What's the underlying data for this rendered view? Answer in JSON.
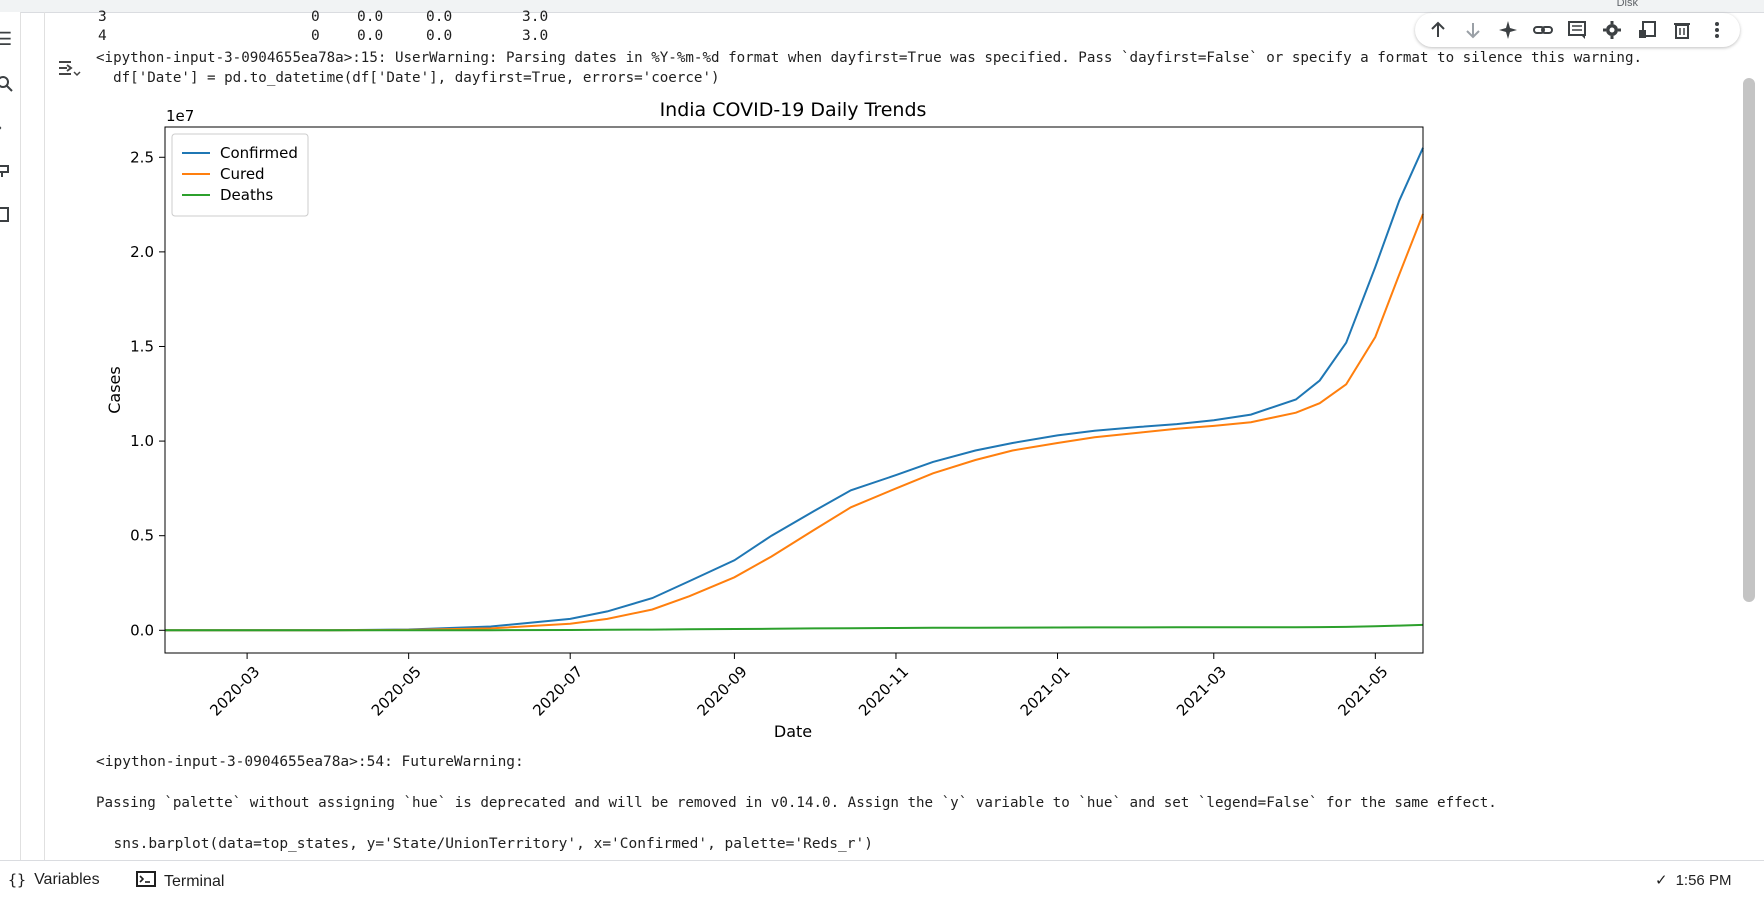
{
  "topbar": {
    "disk_label": "Disk"
  },
  "table_rows": [
    {
      "index": "3",
      "c1": "0",
      "c2": "0.0",
      "c3": "0.0",
      "c4": "3.0"
    },
    {
      "index": "4",
      "c1": "0",
      "c2": "0.0",
      "c3": "0.0",
      "c4": "3.0"
    }
  ],
  "warning1": {
    "line1": "<ipython-input-3-0904655ea78a>:15: UserWarning: Parsing dates in %Y-%m-%d format when dayfirst=True was specified. Pass `dayfirst=False` or specify a format to silence this warning.",
    "line2": "  df['Date'] = pd.to_datetime(df['Date'], dayfirst=True, errors='coerce')"
  },
  "warning2": {
    "line1": "<ipython-input-3-0904655ea78a>:54: FutureWarning:",
    "line2": "Passing `palette` without assigning `hue` is deprecated and will be removed in v0.14.0. Assign the `y` variable to `hue` and set `legend=False` for the same effect.",
    "line3": "  sns.barplot(data=top_states, y='State/UnionTerritory', x='Confirmed', palette='Reds_r')"
  },
  "bottombar": {
    "variables_label": "Variables",
    "terminal_label": "Terminal",
    "time": "1:56 PM"
  },
  "icons": {
    "toolbar": [
      "arrow-up-icon",
      "arrow-down-icon",
      "sparkle-icon",
      "link-icon",
      "comment-icon",
      "gear-icon",
      "mirror-cell-icon",
      "trash-icon",
      "more-vert-icon"
    ]
  },
  "chart_data": {
    "type": "line",
    "title": "India COVID-19 Daily Trends",
    "xlabel": "Date",
    "ylabel": "Cases",
    "y_multiplier_label": "1e7",
    "xlim": [
      "2020-01-30",
      "2021-05-19"
    ],
    "ylim": [
      -0.12,
      2.66
    ],
    "x_ticks": [
      "2020-03",
      "2020-05",
      "2020-07",
      "2020-09",
      "2020-11",
      "2021-01",
      "2021-03",
      "2021-05"
    ],
    "y_ticks": [
      0.0,
      0.5,
      1.0,
      1.5,
      2.0,
      2.5
    ],
    "y_tick_labels": [
      "0.0",
      "0.5",
      "1.0",
      "1.5",
      "2.0",
      "2.5"
    ],
    "legend_position": "top-left",
    "x": [
      "2020-01-30",
      "2020-03-01",
      "2020-04-01",
      "2020-05-01",
      "2020-06-01",
      "2020-07-01",
      "2020-07-15",
      "2020-08-01",
      "2020-08-15",
      "2020-09-01",
      "2020-09-15",
      "2020-10-01",
      "2020-10-15",
      "2020-11-01",
      "2020-11-15",
      "2020-12-01",
      "2020-12-15",
      "2021-01-01",
      "2021-01-15",
      "2021-02-01",
      "2021-02-15",
      "2021-03-01",
      "2021-03-15",
      "2021-04-01",
      "2021-04-10",
      "2021-04-20",
      "2021-05-01",
      "2021-05-10",
      "2021-05-19"
    ],
    "series": [
      {
        "name": "Confirmed",
        "color": "#1f77b4",
        "values": [
          0.0,
          0.0,
          0.0,
          0.004,
          0.02,
          0.06,
          0.1,
          0.17,
          0.26,
          0.37,
          0.5,
          0.63,
          0.74,
          0.82,
          0.89,
          0.95,
          0.99,
          1.03,
          1.055,
          1.075,
          1.09,
          1.11,
          1.14,
          1.22,
          1.32,
          1.52,
          1.92,
          2.27,
          2.55
        ]
      },
      {
        "name": "Cured",
        "color": "#ff7f0e",
        "values": [
          0.0,
          0.0,
          0.0,
          0.002,
          0.01,
          0.035,
          0.06,
          0.11,
          0.18,
          0.28,
          0.39,
          0.53,
          0.65,
          0.75,
          0.83,
          0.9,
          0.95,
          0.99,
          1.02,
          1.045,
          1.065,
          1.08,
          1.1,
          1.15,
          1.2,
          1.3,
          1.55,
          1.88,
          2.2
        ]
      },
      {
        "name": "Deaths",
        "color": "#2ca02c",
        "values": [
          0.0,
          0.0,
          0.0,
          0.0,
          0.0005,
          0.0017,
          0.0025,
          0.0037,
          0.005,
          0.0066,
          0.008,
          0.01,
          0.0112,
          0.0123,
          0.013,
          0.0138,
          0.0144,
          0.0149,
          0.0152,
          0.0155,
          0.0156,
          0.0157,
          0.0159,
          0.0163,
          0.0168,
          0.0178,
          0.0212,
          0.0249,
          0.0283
        ]
      }
    ]
  }
}
